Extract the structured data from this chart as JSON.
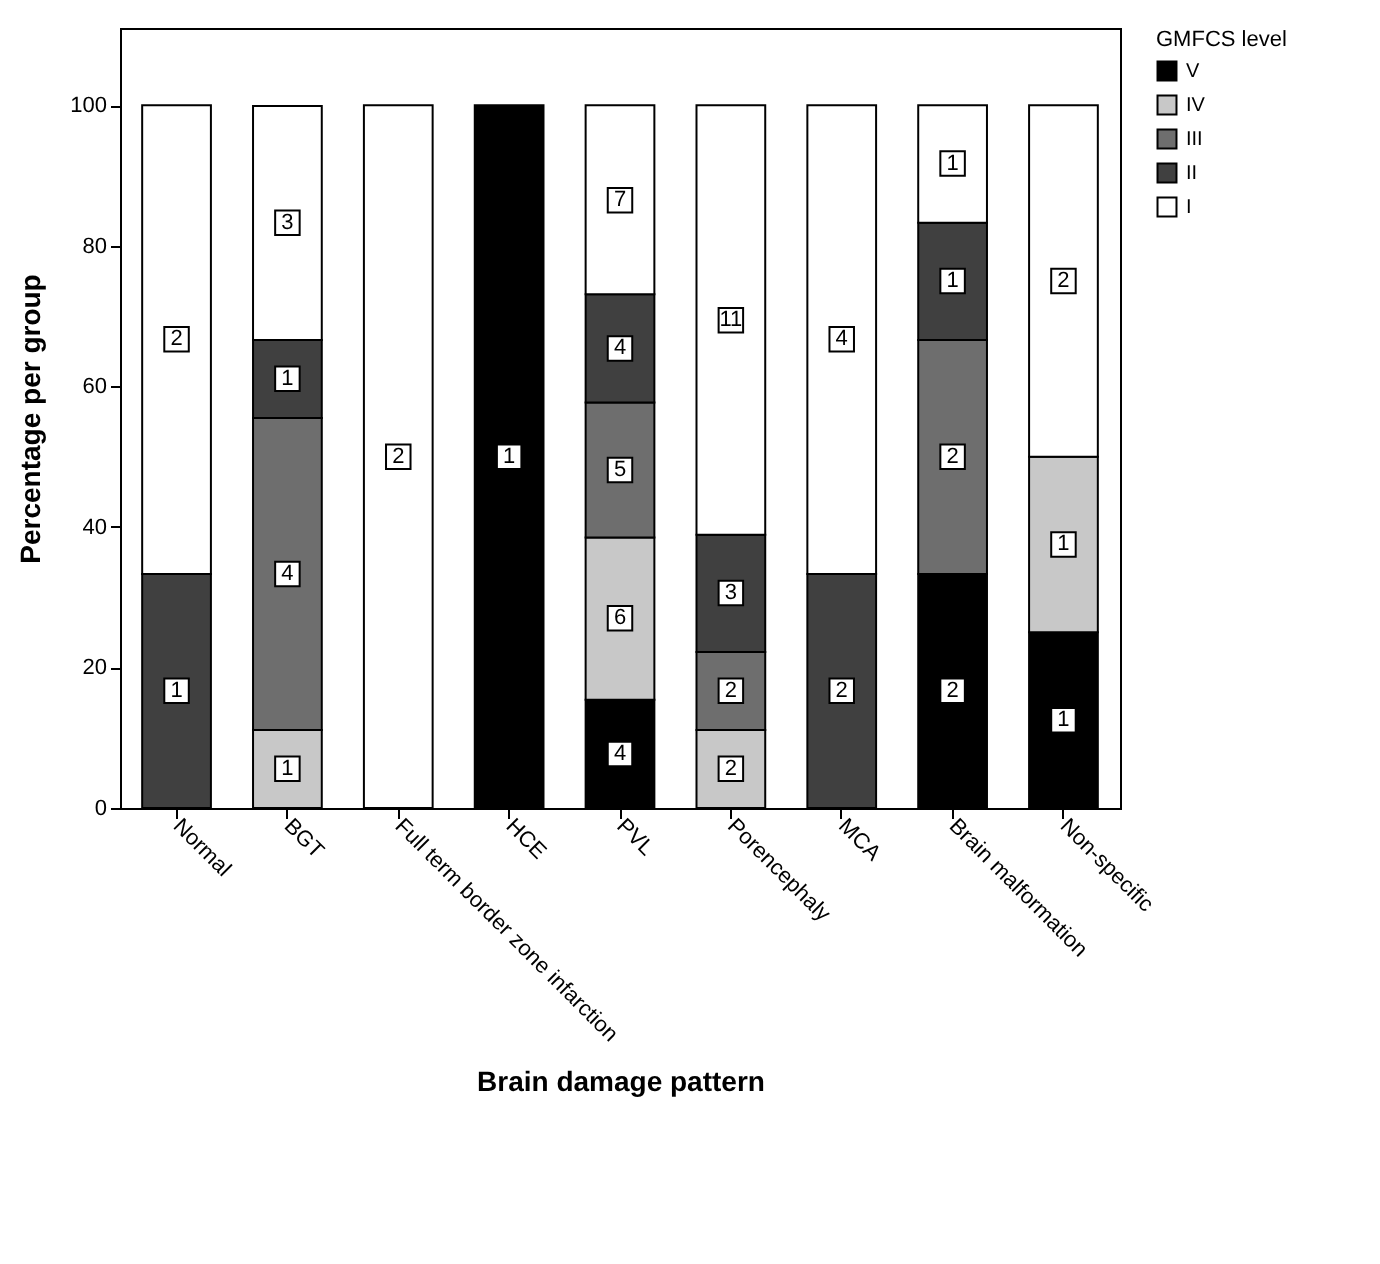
{
  "chart_data": {
    "type": "bar",
    "stacked": true,
    "xlabel": "Brain damage pattern",
    "ylabel": "Percentage per group",
    "legend_title": "GMFCS level",
    "legend": "right",
    "grid": false,
    "categories": [
      "Normal",
      "BGT",
      "Full term border zone infarction",
      "HCE",
      "PVL",
      "Porencephaly",
      "MCA",
      "Brain malformation",
      "Non-specific"
    ],
    "ylim": [
      0,
      111
    ],
    "yticks": [
      0,
      20,
      40,
      60,
      80,
      100
    ],
    "series": [
      {
        "name": "V",
        "color": "#000000",
        "values": [
          null,
          null,
          null,
          100,
          15.4,
          null,
          null,
          33.3,
          25
        ]
      },
      {
        "name": "IV",
        "color": "#c8c8c8",
        "values": [
          null,
          11.1,
          null,
          null,
          23.1,
          11.1,
          null,
          null,
          25
        ]
      },
      {
        "name": "III",
        "color": "#6e6e6e",
        "values": [
          null,
          44.4,
          null,
          null,
          19.2,
          11.1,
          null,
          33.3,
          null
        ]
      },
      {
        "name": "II",
        "color": "#404040",
        "values": [
          33.3,
          11.1,
          null,
          null,
          15.4,
          16.7,
          33.3,
          16.7,
          null
        ]
      },
      {
        "name": "I",
        "color": "#ffffff",
        "values": [
          66.7,
          33.3,
          100,
          null,
          26.9,
          61.1,
          66.7,
          16.7,
          50
        ]
      }
    ],
    "annotations": [
      {
        "text": "1",
        "x": "Normal",
        "y": 16.7
      },
      {
        "text": "2",
        "x": "Normal",
        "y": 66.7
      },
      {
        "text": "1",
        "x": "BGT",
        "y": 5.6
      },
      {
        "text": "4",
        "x": "BGT",
        "y": 33.3
      },
      {
        "text": "1",
        "x": "BGT",
        "y": 61.1
      },
      {
        "text": "3",
        "x": "BGT",
        "y": 83.3
      },
      {
        "text": "2",
        "x": "Full term border zone infarction",
        "y": 50
      },
      {
        "text": "1",
        "x": "HCE",
        "y": 50
      },
      {
        "text": "4",
        "x": "PVL",
        "y": 7.7
      },
      {
        "text": "6",
        "x": "PVL",
        "y": 27
      },
      {
        "text": "5",
        "x": "PVL",
        "y": 48.1
      },
      {
        "text": "4",
        "x": "PVL",
        "y": 65.4
      },
      {
        "text": "7",
        "x": "PVL",
        "y": 86.5
      },
      {
        "text": "2",
        "x": "Porencephaly",
        "y": 5.6
      },
      {
        "text": "2",
        "x": "Porencephaly",
        "y": 16.7
      },
      {
        "text": "3",
        "x": "Porencephaly",
        "y": 30.6
      },
      {
        "text": "11",
        "x": "Porencephaly",
        "y": 69.4
      },
      {
        "text": "2",
        "x": "MCA",
        "y": 16.7
      },
      {
        "text": "4",
        "x": "MCA",
        "y": 66.7
      },
      {
        "text": "2",
        "x": "Brain malformation",
        "y": 16.7
      },
      {
        "text": "2",
        "x": "Brain malformation",
        "y": 50
      },
      {
        "text": "1",
        "x": "Brain malformation",
        "y": 75
      },
      {
        "text": "1",
        "x": "Brain malformation",
        "y": 91.7
      },
      {
        "text": "1",
        "x": "Non-specific",
        "y": 12.5
      },
      {
        "text": "1",
        "x": "Non-specific",
        "y": 37.5
      },
      {
        "text": "2",
        "x": "Non-specific",
        "y": 75
      }
    ]
  }
}
